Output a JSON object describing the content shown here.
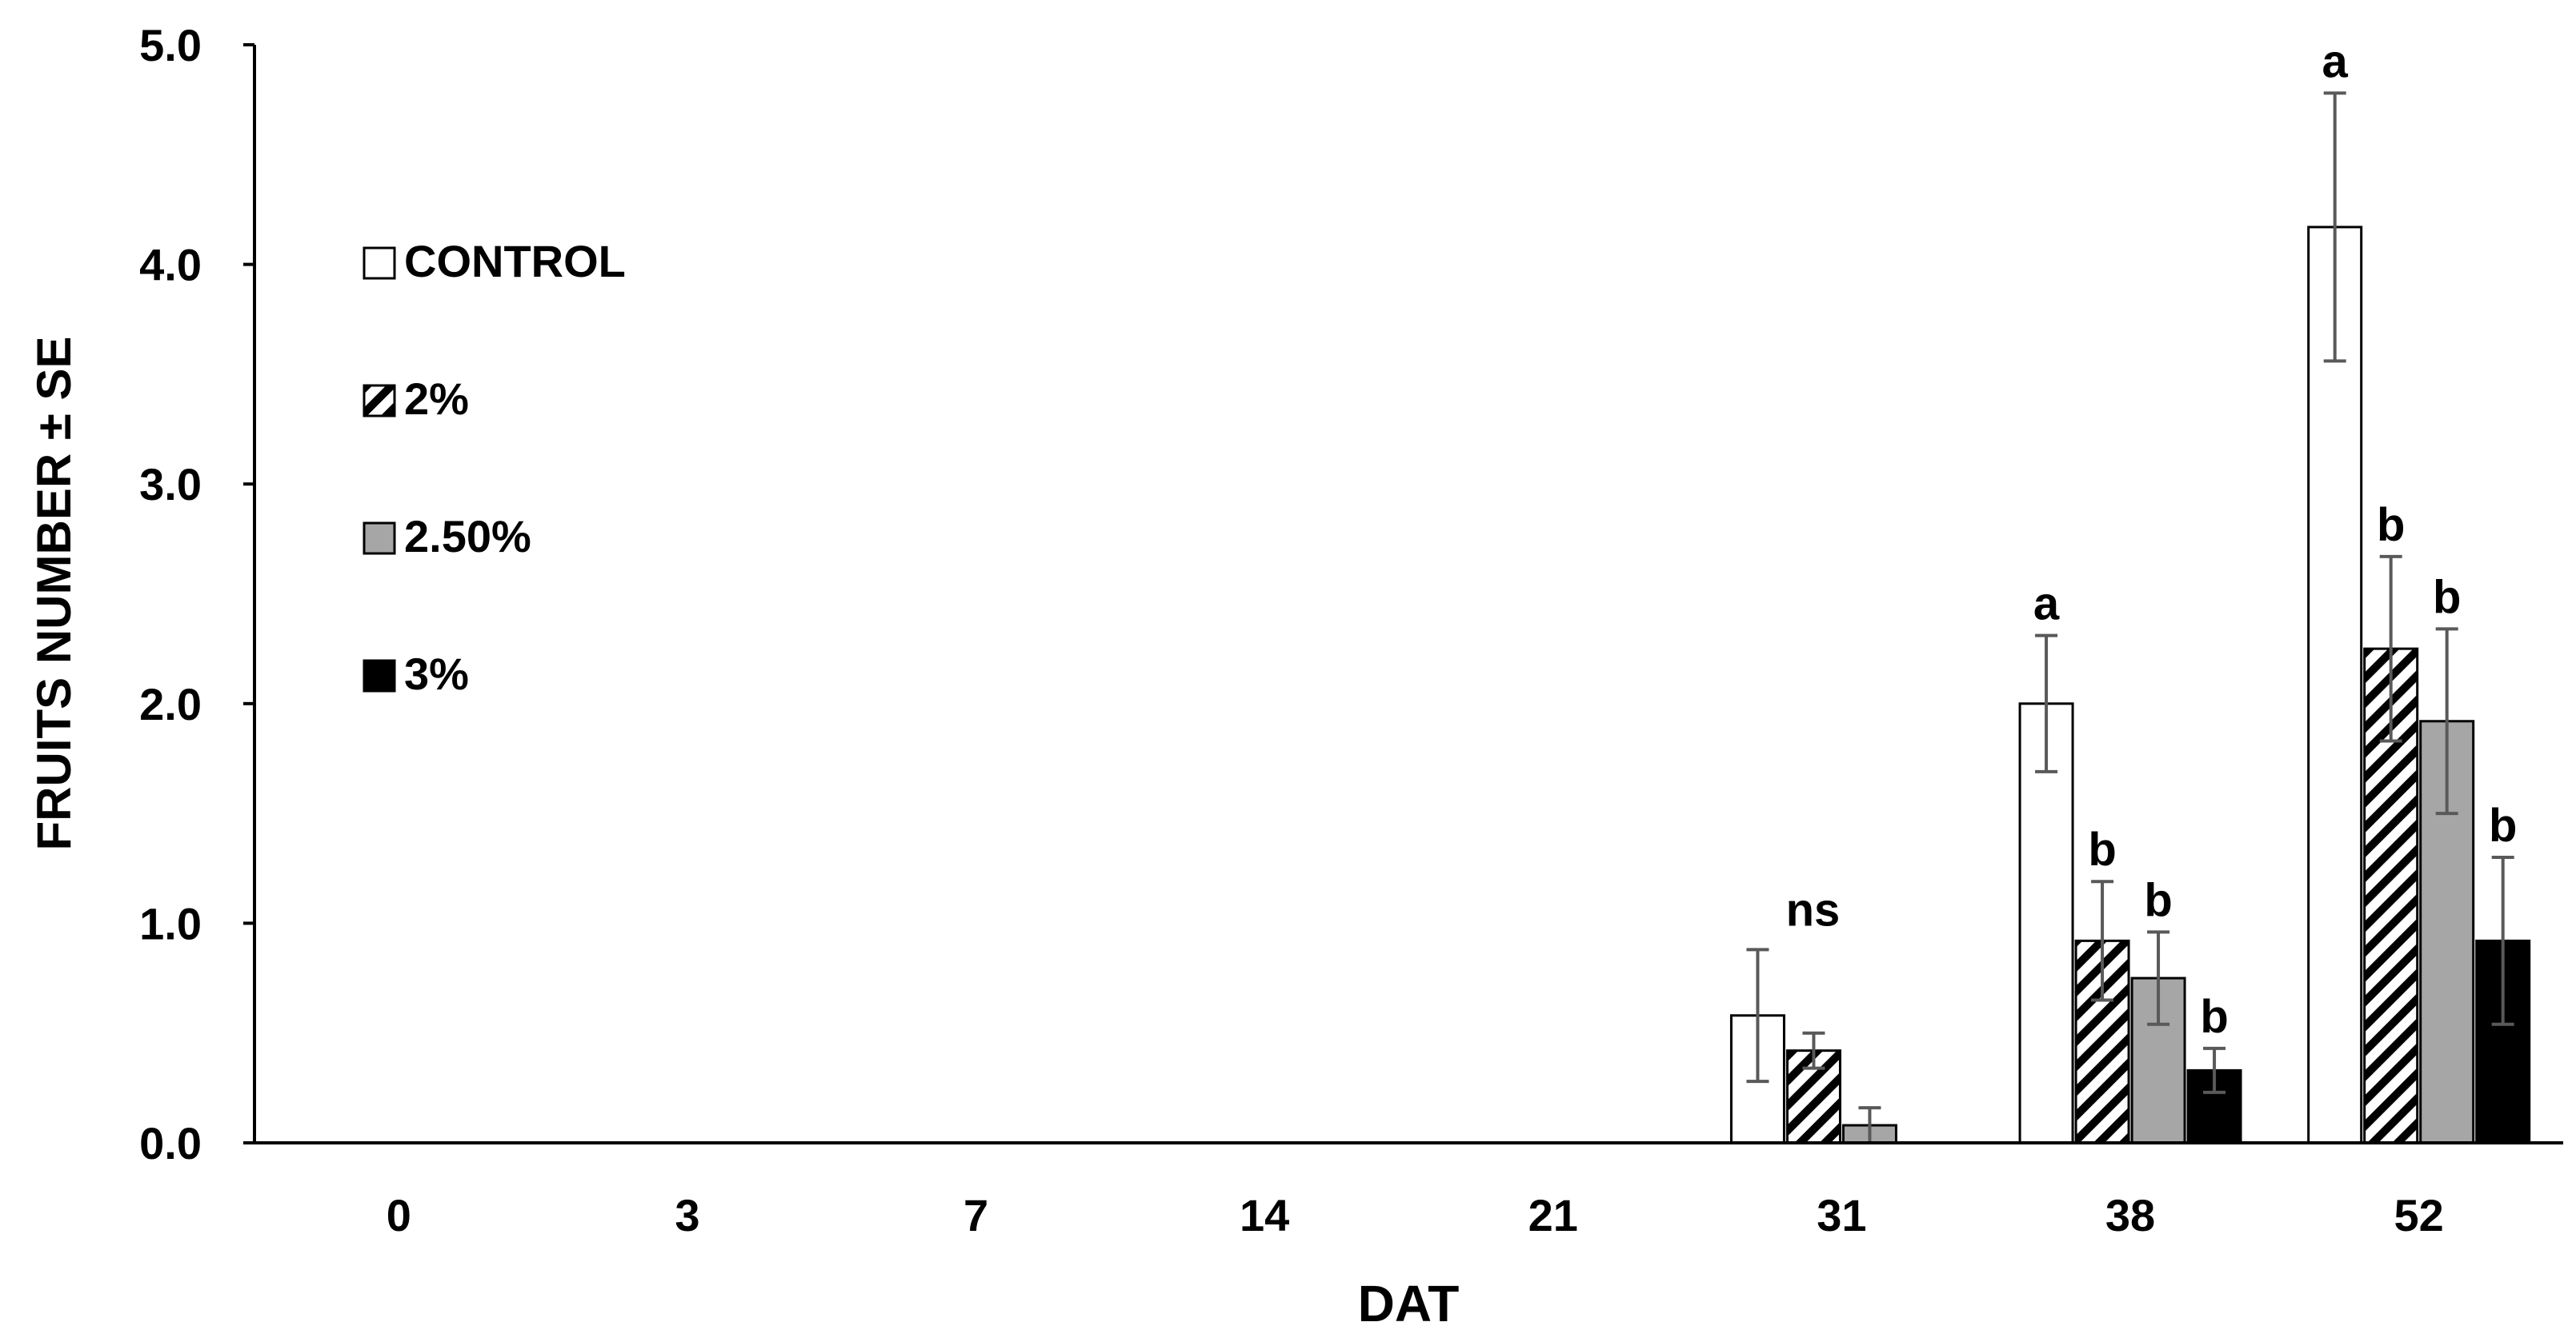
{
  "chart_data": {
    "type": "bar",
    "xlabel": "DAT",
    "ylabel": "FRUITS NUMBER ± SE",
    "ylim": [
      0,
      5
    ],
    "yticks": [
      "0.0",
      "1.0",
      "2.0",
      "3.0",
      "4.0",
      "5.0"
    ],
    "categories": [
      "0",
      "3",
      "7",
      "14",
      "21",
      "31",
      "38",
      "52"
    ],
    "series": [
      {
        "name": "CONTROL",
        "pattern": "white",
        "values": [
          0,
          0,
          0,
          0,
          0,
          0.58,
          2.0,
          4.17
        ],
        "errors": [
          0,
          0,
          0,
          0,
          0,
          0.3,
          0.31,
          0.61
        ]
      },
      {
        "name": "2%",
        "pattern": "hatch",
        "values": [
          0,
          0,
          0,
          0,
          0,
          0.42,
          0.92,
          2.25
        ],
        "errors": [
          0,
          0,
          0,
          0,
          0,
          0.08,
          0.27,
          0.42
        ]
      },
      {
        "name": "2.50%",
        "pattern": "gray",
        "values": [
          0,
          0,
          0,
          0,
          0,
          0.08,
          0.75,
          1.92
        ],
        "errors": [
          0,
          0,
          0,
          0,
          0,
          0.08,
          0.21,
          0.42
        ]
      },
      {
        "name": "3%",
        "pattern": "black",
        "values": [
          0,
          0,
          0,
          0,
          0,
          0,
          0.33,
          0.92
        ],
        "errors": [
          0,
          0,
          0,
          0,
          0,
          0,
          0.1,
          0.38
        ]
      }
    ],
    "annotations": [
      {
        "category": "31",
        "series": "group",
        "text": "ns"
      },
      {
        "category": "38",
        "series": "CONTROL",
        "text": "a"
      },
      {
        "category": "38",
        "series": "2%",
        "text": "b"
      },
      {
        "category": "38",
        "series": "2.50%",
        "text": "b"
      },
      {
        "category": "38",
        "series": "3%",
        "text": "b"
      },
      {
        "category": "52",
        "series": "CONTROL",
        "text": "a"
      },
      {
        "category": "52",
        "series": "2%",
        "text": "b"
      },
      {
        "category": "52",
        "series": "2.50%",
        "text": "b"
      },
      {
        "category": "52",
        "series": "3%",
        "text": "b"
      }
    ],
    "legend": "left",
    "grid": false,
    "colors": {
      "gray": "#a6a6a6",
      "black": "#000000",
      "white": "#ffffff",
      "errorbar": "#595959"
    }
  }
}
